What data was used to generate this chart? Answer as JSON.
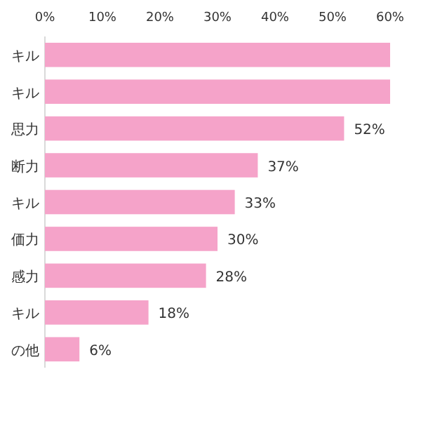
{
  "chart_data": {
    "type": "bar",
    "orientation": "horizontal",
    "categories": [
      "キル",
      "キル",
      "思力",
      "断力",
      "キル",
      "価力",
      "感力",
      "キル",
      "の他"
    ],
    "values": [
      60,
      60,
      52,
      37,
      33,
      30,
      28,
      18,
      6
    ],
    "value_labels": [
      null,
      null,
      "52%",
      "37%",
      "33%",
      "30%",
      "28%",
      "18%",
      "6%"
    ],
    "color": "#f5a3c9",
    "xlim": [
      0,
      60
    ],
    "xticks": [
      {
        "value": 0,
        "label": "0%"
      },
      {
        "value": 10,
        "label": "10%"
      },
      {
        "value": 20,
        "label": "20%"
      },
      {
        "value": 30,
        "label": "30%"
      },
      {
        "value": 40,
        "label": "40%"
      },
      {
        "value": 50,
        "label": "50%"
      },
      {
        "value": 60,
        "label": "60%"
      }
    ],
    "grid": false
  }
}
